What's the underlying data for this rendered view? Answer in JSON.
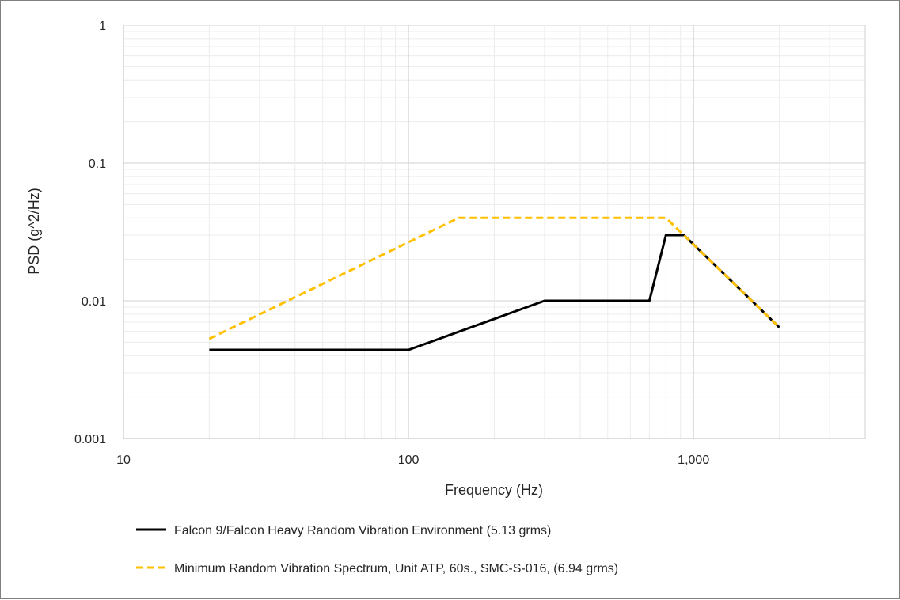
{
  "chart_data": {
    "type": "line",
    "xlabel": "Frequency (Hz)",
    "ylabel": "PSD (g^2/Hz)",
    "x_scale": "log",
    "y_scale": "log",
    "xlim": [
      10,
      4000
    ],
    "ylim": [
      0.001,
      1
    ],
    "x_ticks": [
      {
        "value": 10,
        "label": "10"
      },
      {
        "value": 100,
        "label": "100"
      },
      {
        "value": 1000,
        "label": "1,000"
      }
    ],
    "y_ticks": [
      {
        "value": 0.001,
        "label": "0.001"
      },
      {
        "value": 0.01,
        "label": "0.01"
      },
      {
        "value": 0.1,
        "label": "0.1"
      },
      {
        "value": 1,
        "label": "1"
      }
    ],
    "grid": true,
    "legend_position": "bottom",
    "series": [
      {
        "name": "Falcon 9/Falcon Heavy Random Vibration Environment (5.13 grms)",
        "color": "#000000",
        "style": "solid",
        "points": [
          [
            20,
            0.0044
          ],
          [
            100,
            0.0044
          ],
          [
            300,
            0.01
          ],
          [
            700,
            0.01
          ],
          [
            800,
            0.03
          ],
          [
            925,
            0.03
          ],
          [
            2000,
            0.0064
          ]
        ]
      },
      {
        "name": "Minimum Random Vibration Spectrum, Unit ATP, 60s., SMC-S-016, (6.94 grms)",
        "color": "#FFC000",
        "style": "dashed",
        "points": [
          [
            20,
            0.0053
          ],
          [
            150,
            0.04
          ],
          [
            800,
            0.04
          ],
          [
            2000,
            0.0064
          ]
        ]
      }
    ]
  }
}
